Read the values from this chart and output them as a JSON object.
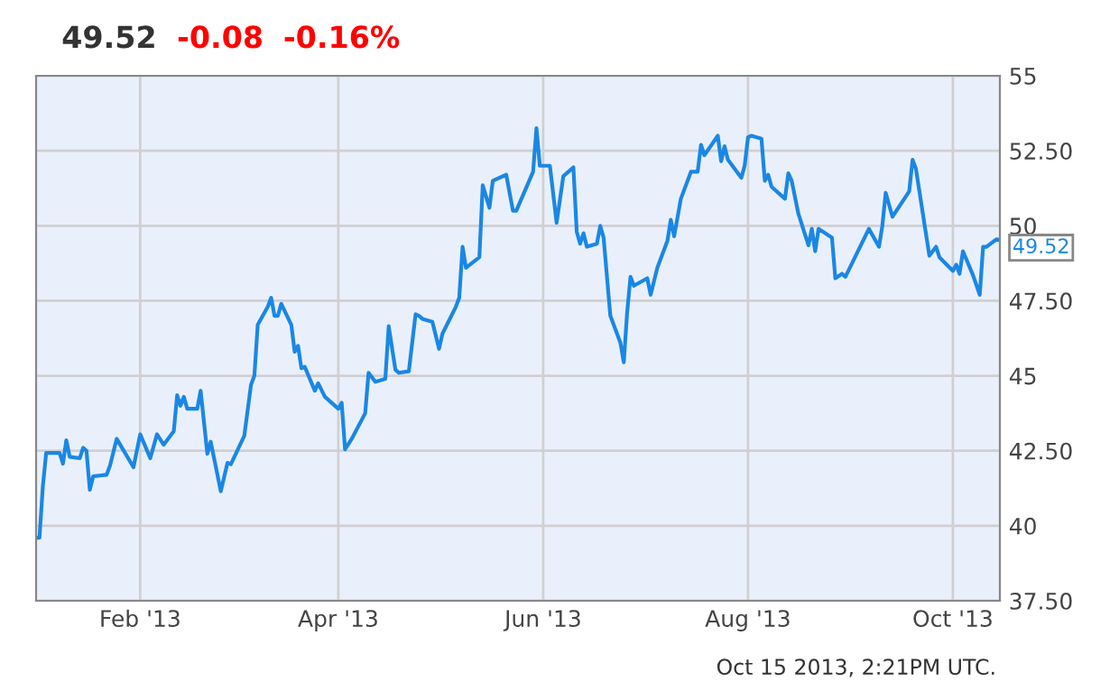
{
  "chart_data": {
    "type": "line",
    "title": "49.52",
    "annotations": [
      "-0.08",
      "-0.16%",
      "Oct 15 2013, 2:21PM UTC.",
      {
        "text": "49.52",
        "x": "2013-10-15",
        "y": 49.52
      }
    ],
    "x": [
      "2013-01-01",
      "2013-01-02",
      "2013-01-03",
      "2013-01-04",
      "2013-01-08",
      "2013-01-09",
      "2013-01-10",
      "2013-01-11",
      "2013-01-14",
      "2013-01-15",
      "2013-01-16",
      "2013-01-17",
      "2013-01-18",
      "2013-01-22",
      "2013-01-23",
      "2013-01-25",
      "2013-01-30",
      "2013-02-01",
      "2013-02-04",
      "2013-02-06",
      "2013-02-08",
      "2013-02-11",
      "2013-02-12",
      "2013-02-13",
      "2013-02-14",
      "2013-02-15",
      "2013-02-18",
      "2013-02-19",
      "2013-02-21",
      "2013-02-22",
      "2013-02-25",
      "2013-02-27",
      "2013-02-28",
      "2013-03-04",
      "2013-03-06",
      "2013-03-07",
      "2013-03-08",
      "2013-03-11",
      "2013-03-12",
      "2013-03-13",
      "2013-03-14",
      "2013-03-15",
      "2013-03-18",
      "2013-03-19",
      "2013-03-20",
      "2013-03-21",
      "2013-03-22",
      "2013-03-25",
      "2013-03-26",
      "2013-03-28",
      "2013-04-01",
      "2013-04-02",
      "2013-04-03",
      "2013-04-05",
      "2013-04-09",
      "2013-04-10",
      "2013-04-12",
      "2013-04-15",
      "2013-04-16",
      "2013-04-18",
      "2013-04-19",
      "2013-04-22",
      "2013-04-24",
      "2013-04-25",
      "2013-04-26",
      "2013-04-29",
      "2013-05-01",
      "2013-05-02",
      "2013-05-06",
      "2013-05-07",
      "2013-05-08",
      "2013-05-09",
      "2013-05-13",
      "2013-05-14",
      "2013-05-16",
      "2013-05-17",
      "2013-05-21",
      "2013-05-23",
      "2013-05-24",
      "2013-05-29",
      "2013-05-30",
      "2013-05-31",
      "2013-06-03",
      "2013-06-05",
      "2013-06-07",
      "2013-06-10",
      "2013-06-11",
      "2013-06-12",
      "2013-06-13",
      "2013-06-14",
      "2013-06-17",
      "2013-06-18",
      "2013-06-19",
      "2013-06-21",
      "2013-06-24",
      "2013-06-25",
      "2013-06-26",
      "2013-06-27",
      "2013-06-28",
      "2013-07-02",
      "2013-07-03",
      "2013-07-05",
      "2013-07-08",
      "2013-07-09",
      "2013-07-10",
      "2013-07-12",
      "2013-07-15",
      "2013-07-17",
      "2013-07-18",
      "2013-07-19",
      "2013-07-23",
      "2013-07-24",
      "2013-07-25",
      "2013-07-26",
      "2013-07-30",
      "2013-07-31",
      "2013-08-01",
      "2013-08-02",
      "2013-08-05",
      "2013-08-06",
      "2013-08-07",
      "2013-08-08",
      "2013-08-12",
      "2013-08-13",
      "2013-08-14",
      "2013-08-16",
      "2013-08-19",
      "2013-08-20",
      "2013-08-21",
      "2013-08-22",
      "2013-08-26",
      "2013-08-27",
      "2013-08-29",
      "2013-08-30",
      "2013-09-06",
      "2013-09-09",
      "2013-09-10",
      "2013-09-11",
      "2013-09-13",
      "2013-09-18",
      "2013-09-19",
      "2013-09-20",
      "2013-09-24",
      "2013-09-26",
      "2013-09-27",
      "2013-10-01",
      "2013-10-02",
      "2013-10-03",
      "2013-10-04",
      "2013-10-07",
      "2013-10-09",
      "2013-10-10",
      "2013-10-11",
      "2013-10-14",
      "2013-10-15"
    ],
    "series": [
      {
        "color": "#1a87e5",
        "values": [
          39.6,
          39.6,
          41.3,
          42.43,
          42.43,
          42.07,
          42.85,
          42.3,
          42.25,
          42.6,
          42.5,
          41.2,
          41.65,
          41.7,
          42.0,
          42.9,
          41.95,
          43.05,
          42.25,
          43.05,
          42.7,
          43.15,
          44.35,
          44.0,
          44.3,
          43.9,
          43.9,
          44.5,
          42.4,
          42.8,
          41.15,
          42.1,
          42.05,
          43.0,
          44.7,
          45.0,
          46.7,
          47.3,
          47.6,
          47.0,
          47.0,
          47.4,
          46.7,
          45.8,
          46.0,
          45.25,
          45.3,
          44.5,
          44.75,
          44.3,
          43.9,
          44.1,
          42.55,
          42.9,
          43.75,
          45.1,
          44.8,
          44.9,
          46.65,
          45.2,
          45.1,
          45.15,
          47.05,
          47.0,
          46.9,
          46.8,
          45.9,
          46.4,
          47.3,
          47.6,
          49.3,
          48.6,
          48.95,
          51.35,
          50.6,
          51.5,
          51.7,
          50.5,
          50.5,
          51.8,
          53.25,
          52.0,
          52.0,
          50.1,
          51.65,
          51.95,
          49.8,
          49.4,
          49.75,
          49.3,
          49.4,
          50.0,
          49.6,
          47.0,
          46.1,
          45.45,
          47.1,
          48.3,
          48.0,
          48.25,
          47.7,
          48.6,
          49.5,
          50.2,
          49.65,
          50.9,
          51.8,
          51.8,
          52.7,
          52.35,
          53.0,
          52.15,
          52.65,
          52.2,
          51.6,
          52.0,
          52.95,
          53.0,
          52.9,
          51.5,
          51.7,
          51.3,
          50.9,
          51.75,
          51.5,
          50.4,
          49.35,
          49.9,
          49.15,
          49.9,
          49.6,
          48.25,
          48.4,
          48.3,
          49.9,
          49.3,
          50.0,
          51.1,
          50.3,
          51.15,
          52.2,
          51.9,
          49.0,
          49.3,
          48.95,
          48.5,
          48.7,
          48.4,
          49.15,
          48.35,
          47.7,
          49.3,
          49.3,
          49.55,
          49.52
        ]
      }
    ],
    "xlim": [
      "2013-01-01",
      "2013-10-15"
    ],
    "xticks": [
      {
        "value": "2013-02-01",
        "label": "Feb '13"
      },
      {
        "value": "2013-04-01",
        "label": "Apr '13"
      },
      {
        "value": "2013-06-01",
        "label": "Jun '13"
      },
      {
        "value": "2013-08-01",
        "label": "Aug '13"
      },
      {
        "value": "2013-10-01",
        "label": "Oct '13"
      }
    ],
    "ylim": [
      37.5,
      55
    ],
    "yticks": [
      {
        "value": 37.5,
        "label": "37.50"
      },
      40,
      {
        "value": 42.5,
        "label": "42.50"
      },
      45,
      {
        "value": 47.5,
        "label": "47.50"
      },
      50,
      {
        "value": 52.5,
        "label": "52.50"
      },
      55
    ],
    "grid": true,
    "legend": false,
    "marker": "none",
    "line_style": "solid"
  }
}
